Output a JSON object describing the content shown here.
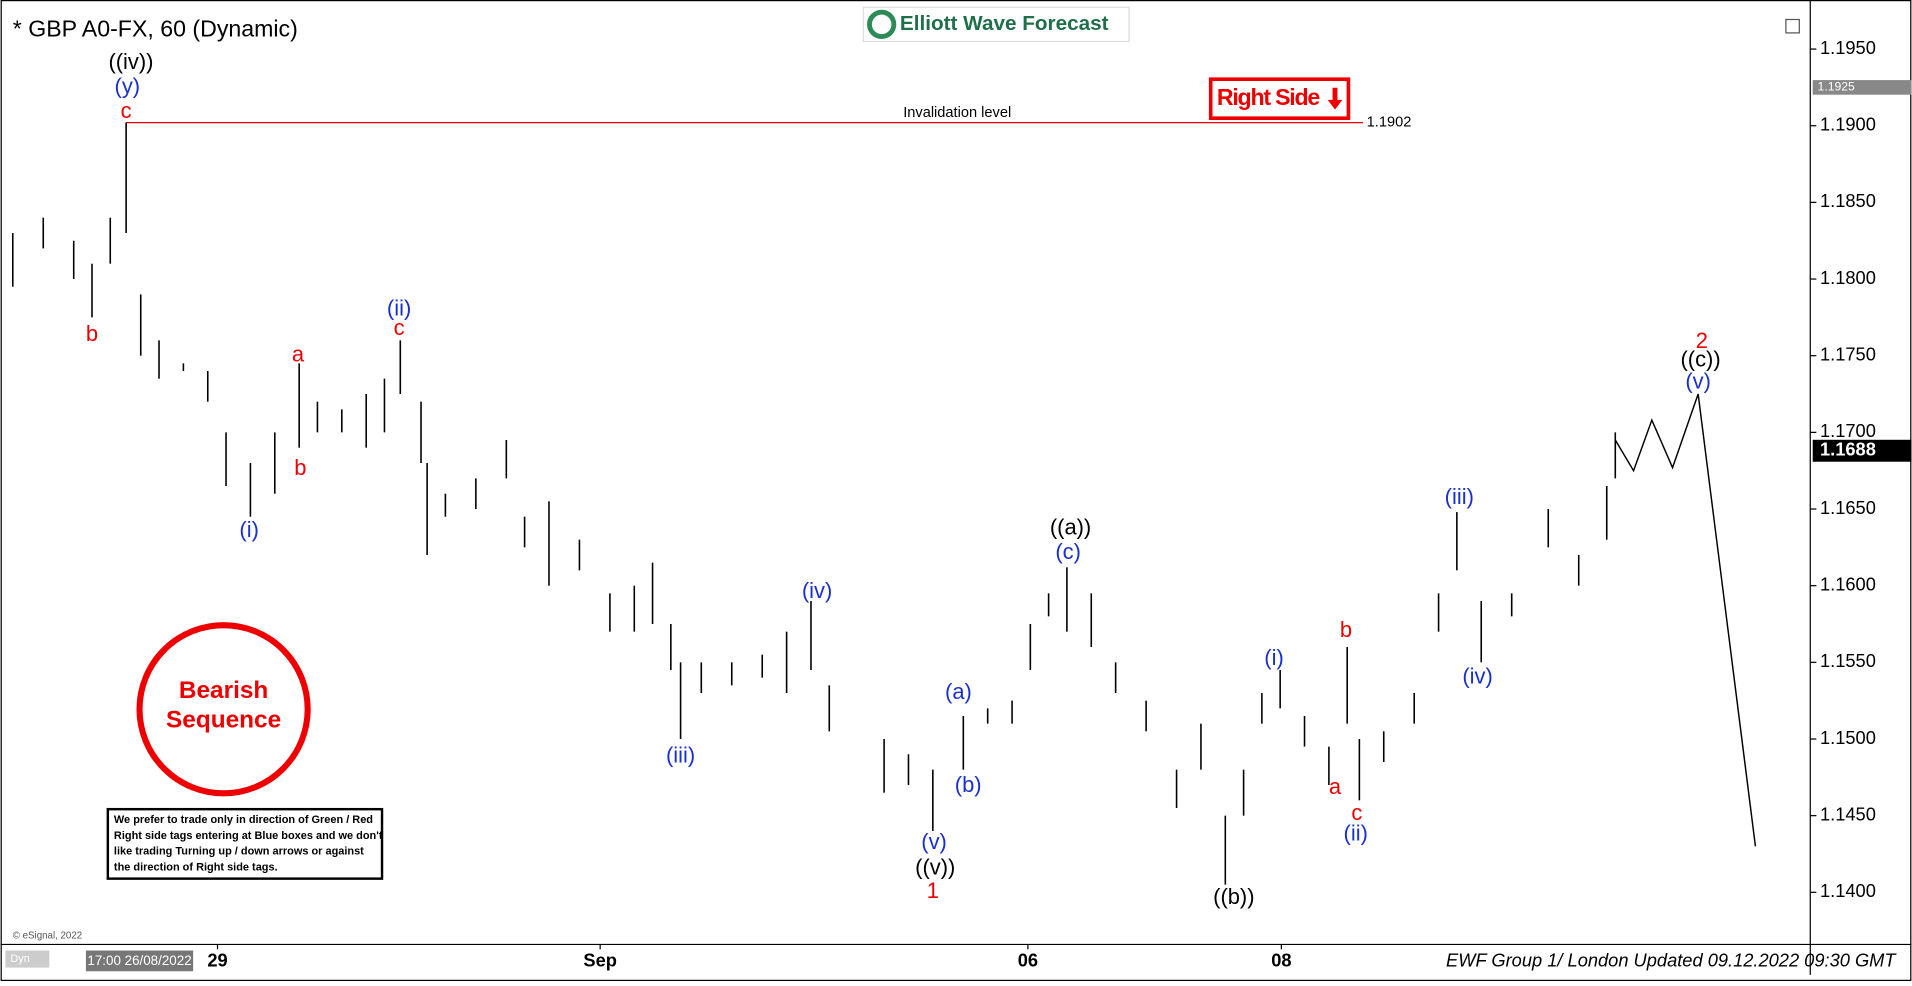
{
  "chart_data": {
    "type": "ohlc",
    "title": "* GBP A0-FX, 60 (Dynamic)",
    "logo": "Elliott Wave Forecast",
    "tag": "Right Side",
    "invalidation": {
      "label": "Invalidation level",
      "value": 1.1902
    },
    "price_tags": [
      1.1925,
      1.1688
    ],
    "badge": "Bearish Sequence",
    "note": [
      "We prefer to trade only in direction of Green / Red",
      "Right side tags entering at Blue boxes and we don't",
      "like trading Turning up / down arrows or against",
      "the direction of Right side tags."
    ],
    "source": "© eSignal, 2022",
    "start_time": "17:00 26/08/2022",
    "dyn": "Dyn",
    "footer": "EWF Group 1/ London Updated 09.12.2022 09:30 GMT",
    "xlim": [
      0,
      297
    ],
    "xticks": [
      {
        "value": 35.6,
        "label": "29"
      },
      {
        "value": 98.4,
        "label": "Sep"
      },
      {
        "value": 168.6,
        "label": "06"
      },
      {
        "value": 210.2,
        "label": "08"
      }
    ],
    "ylim": [
      1.1366,
      1.1982
    ],
    "yticks": [
      {
        "value": 1.195,
        "label": "1.1950"
      },
      {
        "value": 1.19,
        "label": "1.1900"
      },
      {
        "value": 1.185,
        "label": "1.1850"
      },
      {
        "value": 1.18,
        "label": "1.1800"
      },
      {
        "value": 1.175,
        "label": "1.1750"
      },
      {
        "value": 1.17,
        "label": "1.1700"
      },
      {
        "value": 1.165,
        "label": "1.1650"
      },
      {
        "value": 1.16,
        "label": "1.1600"
      },
      {
        "value": 1.155,
        "label": "1.1550"
      },
      {
        "value": 1.15,
        "label": "1.1500"
      },
      {
        "value": 1.145,
        "label": "1.1450"
      },
      {
        "value": 1.14,
        "label": "1.1400"
      }
    ],
    "bars": {
      "color": "#000000",
      "x": [
        2,
        7,
        12,
        15,
        18,
        20.6,
        23,
        26,
        30,
        34,
        37,
        41,
        45,
        49,
        52,
        56,
        60,
        63,
        65.6,
        69,
        70,
        73,
        78,
        83,
        86,
        90,
        95,
        100,
        104,
        107,
        110,
        111.6,
        115,
        120,
        125,
        129,
        133,
        136,
        142,
        145,
        149,
        153,
        158,
        162,
        166,
        169,
        172,
        175,
        179,
        183,
        188,
        193,
        197,
        201,
        204,
        207,
        210,
        214,
        218,
        221,
        223,
        227,
        232,
        236,
        239,
        243,
        248,
        254,
        259,
        263.6,
        265
      ],
      "high": [
        1.183,
        1.184,
        1.1825,
        1.181,
        1.184,
        1.1902,
        1.179,
        1.176,
        1.1745,
        1.174,
        1.17,
        1.168,
        1.17,
        1.1745,
        1.172,
        1.1715,
        1.1725,
        1.1735,
        1.176,
        1.172,
        1.168,
        1.166,
        1.167,
        1.1695,
        1.1645,
        1.1655,
        1.163,
        1.1595,
        1.16,
        1.1615,
        1.1575,
        1.155,
        1.155,
        1.155,
        1.1555,
        1.157,
        1.159,
        1.1535,
        1.1507,
        1.15,
        1.149,
        1.148,
        1.1515,
        1.152,
        1.1525,
        1.1575,
        1.1595,
        1.1612,
        1.1595,
        1.155,
        1.1525,
        1.148,
        1.151,
        1.145,
        1.148,
        1.153,
        1.1545,
        1.1515,
        1.1495,
        1.156,
        1.15,
        1.1505,
        1.153,
        1.1595,
        1.1648,
        1.159,
        1.1595,
        1.165,
        1.162,
        1.1665,
        1.17
      ],
      "low": [
        1.1795,
        1.182,
        1.18,
        1.1775,
        1.181,
        1.183,
        1.175,
        1.1735,
        1.174,
        1.172,
        1.1665,
        1.1645,
        1.166,
        1.169,
        1.17,
        1.17,
        1.169,
        1.17,
        1.1725,
        1.168,
        1.162,
        1.1645,
        1.165,
        1.167,
        1.1625,
        1.16,
        1.161,
        1.157,
        1.157,
        1.1575,
        1.1545,
        1.15,
        1.153,
        1.1535,
        1.154,
        1.153,
        1.1545,
        1.1505,
        1.1507,
        1.1465,
        1.147,
        1.144,
        1.148,
        1.151,
        1.151,
        1.1545,
        1.158,
        1.157,
        1.156,
        1.153,
        1.1505,
        1.1455,
        1.148,
        1.1405,
        1.145,
        1.151,
        1.152,
        1.1495,
        1.147,
        1.151,
        1.146,
        1.1485,
        1.151,
        1.157,
        1.161,
        1.155,
        1.158,
        1.1625,
        1.16,
        1.163,
        1.167
      ]
    },
    "projection": {
      "color": "#000000",
      "x": [
        265,
        268,
        271,
        274.4,
        278.6,
        288
      ],
      "values": [
        1.1695,
        1.1675,
        1.1708,
        1.1677,
        1.1725,
        1.143
      ]
    },
    "annotations": [
      "((iv))",
      "(y)",
      "c",
      "b",
      "a",
      "(ii)",
      "c",
      "b",
      "(i)",
      "(iii)",
      "(iv)",
      "(a)",
      "(b)",
      "(v)",
      "((v))",
      "1",
      "((a))",
      "(c)",
      "((b))",
      "(i)",
      "b",
      "a",
      "c",
      "(ii)",
      "(iii)",
      "(iv)",
      "2",
      "((c))",
      "(v)"
    ]
  }
}
